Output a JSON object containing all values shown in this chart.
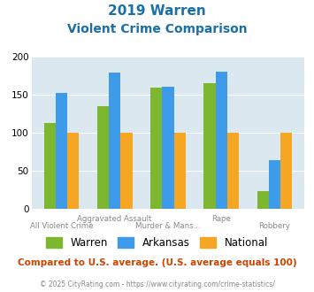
{
  "title_line1": "2019 Warren",
  "title_line2": "Violent Crime Comparison",
  "warren": [
    113,
    135,
    160,
    165,
    23
  ],
  "arkansas": [
    153,
    179,
    161,
    181,
    64
  ],
  "national": [
    100,
    100,
    100,
    100,
    100
  ],
  "warren_color": "#7db72f",
  "arkansas_color": "#3d9be9",
  "national_color": "#f5a623",
  "bg_color": "#dce8f0",
  "ylim": [
    0,
    200
  ],
  "yticks": [
    0,
    50,
    100,
    150,
    200
  ],
  "top_labels": [
    "",
    "Aggravated Assault",
    "",
    "Rape",
    ""
  ],
  "bottom_labels": [
    "All Violent Crime",
    "",
    "Murder & Mans...",
    "",
    "Robbery"
  ],
  "footer_text": "Compared to U.S. average. (U.S. average equals 100)",
  "copyright_text": "© 2025 CityRating.com - https://www.cityrating.com/crime-statistics/",
  "title_color": "#1a6fa8",
  "footer_color": "#cc4400",
  "copyright_color": "#888888"
}
